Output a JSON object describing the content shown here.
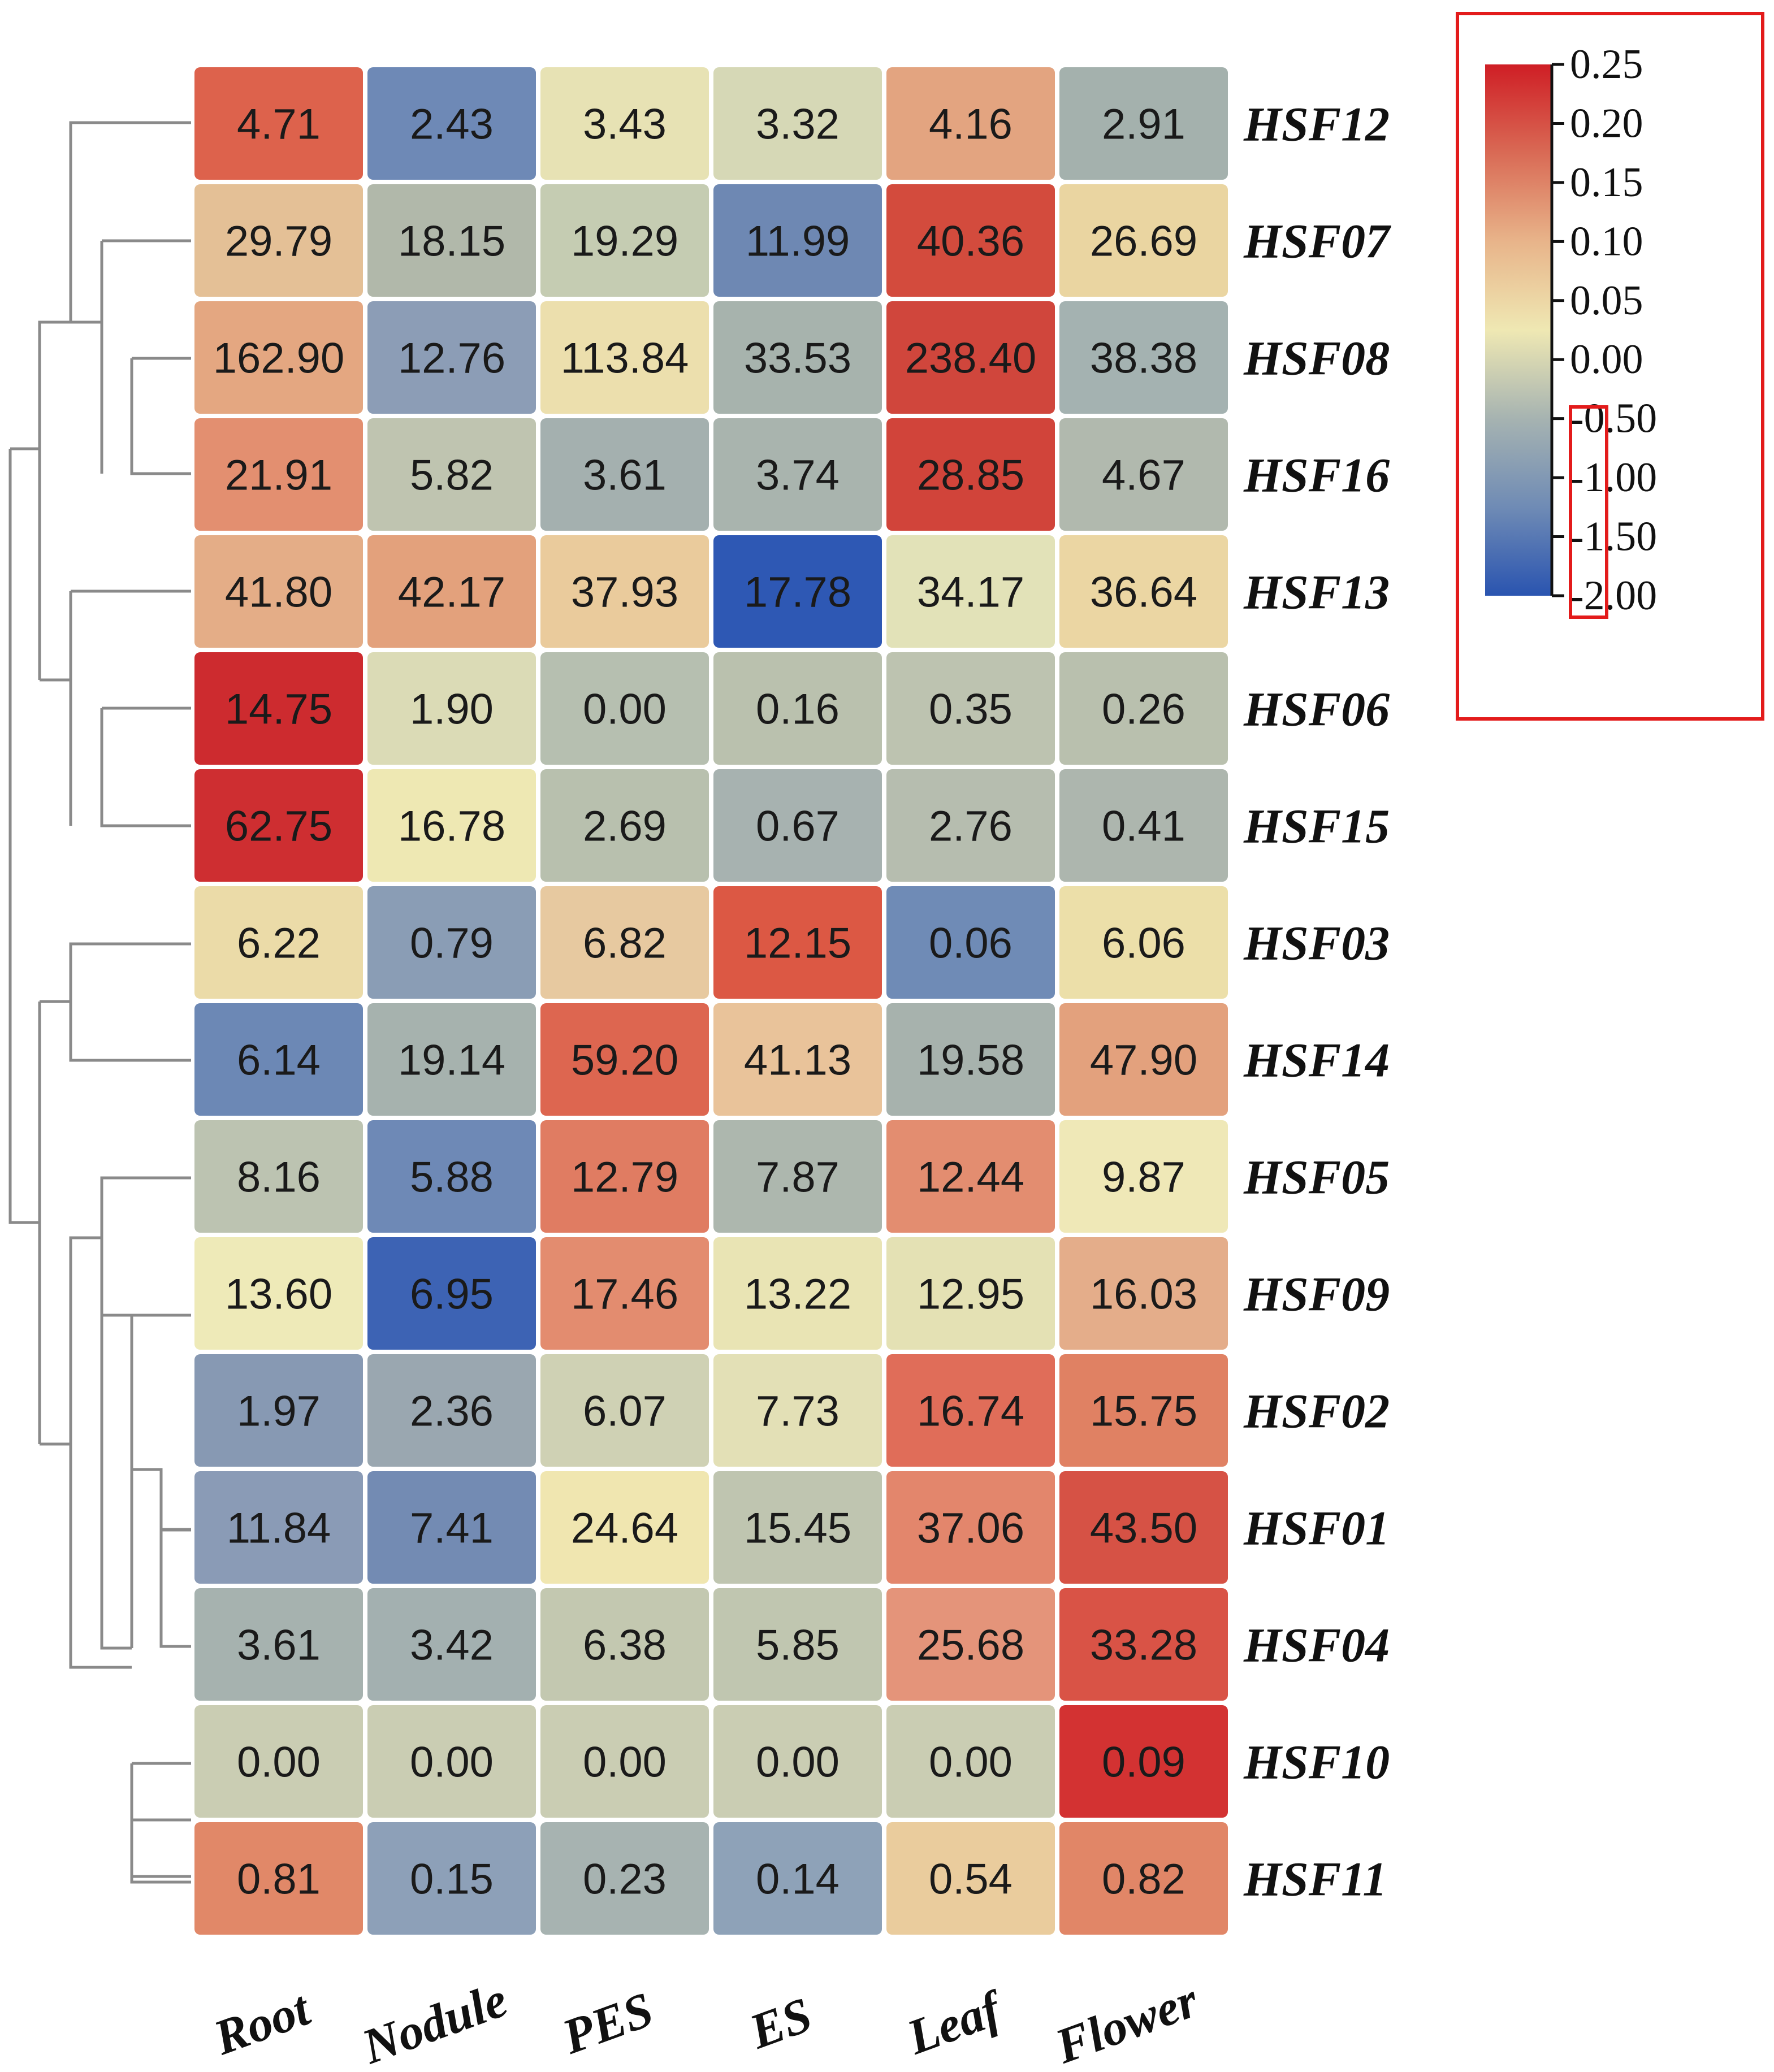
{
  "chart_data": {
    "type": "heatmap",
    "title": "",
    "columns": [
      "Root",
      "Nodule",
      "PES",
      "ES",
      "Leaf",
      "Flower"
    ],
    "rows": [
      "HSF12",
      "HSF07",
      "HSF08",
      "HSF16",
      "HSF13",
      "HSF06",
      "HSF15",
      "HSF03",
      "HSF14",
      "HSF05",
      "HSF09",
      "HSF02",
      "HSF01",
      "HSF04",
      "HSF10",
      "HSF11"
    ],
    "values": [
      [
        "4.71",
        "2.43",
        "3.43",
        "3.32",
        "4.16",
        "2.91"
      ],
      [
        "29.79",
        "18.15",
        "19.29",
        "11.99",
        "40.36",
        "26.69"
      ],
      [
        "162.90",
        "12.76",
        "113.84",
        "33.53",
        "238.40",
        "38.38"
      ],
      [
        "21.91",
        "5.82",
        "3.61",
        "3.74",
        "28.85",
        "4.67"
      ],
      [
        "41.80",
        "42.17",
        "37.93",
        "17.78",
        "34.17",
        "36.64"
      ],
      [
        "14.75",
        "1.90",
        "0.00",
        "0.16",
        "0.35",
        "0.26"
      ],
      [
        "62.75",
        "16.78",
        "2.69",
        "0.67",
        "2.76",
        "0.41"
      ],
      [
        "6.22",
        "0.79",
        "6.82",
        "12.15",
        "0.06",
        "6.06"
      ],
      [
        "6.14",
        "19.14",
        "59.20",
        "41.13",
        "19.58",
        "47.90"
      ],
      [
        "8.16",
        "5.88",
        "12.79",
        "7.87",
        "12.44",
        "9.87"
      ],
      [
        "13.60",
        "6.95",
        "17.46",
        "13.22",
        "12.95",
        "16.03"
      ],
      [
        "1.97",
        "2.36",
        "6.07",
        "7.73",
        "16.74",
        "15.75"
      ],
      [
        "11.84",
        "7.41",
        "24.64",
        "15.45",
        "37.06",
        "43.50"
      ],
      [
        "3.61",
        "3.42",
        "6.38",
        "5.85",
        "25.68",
        "33.28"
      ],
      [
        "0.00",
        "0.00",
        "0.00",
        "0.00",
        "0.00",
        "0.09"
      ],
      [
        "0.81",
        "0.15",
        "0.23",
        "0.14",
        "0.54",
        "0.82"
      ]
    ],
    "colors": [
      [
        "#dd624c",
        "#6e89b6",
        "#e7e2b4",
        "#d6d8b6",
        "#e3a480",
        "#a4b1ad"
      ],
      [
        "#e4c096",
        "#b1b8aa",
        "#c5ccb2",
        "#6e88b3",
        "#d34b3d",
        "#ead5a1"
      ],
      [
        "#e4a781",
        "#8c9db6",
        "#ecdfad",
        "#a7b3ad",
        "#d0463c",
        "#a4b2b1"
      ],
      [
        "#e38f70",
        "#bfc4b0",
        "#a4b0af",
        "#a9b4ae",
        "#d1443a",
        "#b1b9ae"
      ],
      [
        "#e4ad87",
        "#e3a17c",
        "#eacb9c",
        "#2e58b4",
        "#e2e2b8",
        "#ebd6a3"
      ],
      [
        "#cd2b2f",
        "#dbdbb6",
        "#b6bfb0",
        "#bac1ae",
        "#bdc3b0",
        "#b9c0ae"
      ],
      [
        "#ce2e31",
        "#eee8b3",
        "#b8c0ae",
        "#a7b2b0",
        "#b6bdaf",
        "#adb6ae"
      ],
      [
        "#ebdba8",
        "#8a9db5",
        "#e7c9a0",
        "#dc5844",
        "#6f8bb6",
        "#ecdfa9"
      ],
      [
        "#6c88b5",
        "#a6b2ae",
        "#dd6650",
        "#e9c39a",
        "#a7b2ad",
        "#e3a17d"
      ],
      [
        "#bcc3b1",
        "#6e89b6",
        "#e07c62",
        "#adb7ae",
        "#e38d70",
        "#efe8b7"
      ],
      [
        "#eeeab8",
        "#3d63b4",
        "#e38c6f",
        "#e9e4b4",
        "#e4e1b4",
        "#e4ad8a"
      ],
      [
        "#8799b3",
        "#9aa7b0",
        "#cfd1b4",
        "#e3e0b6",
        "#e06d59",
        "#e08163"
      ],
      [
        "#8a9bb6",
        "#738bb3",
        "#f0e6b0",
        "#bfc5b0",
        "#e3866c",
        "#d65245"
      ],
      [
        "#a6b2af",
        "#a3b0b0",
        "#c3c8b0",
        "#c0c6b0",
        "#e4947a",
        "#d95346"
      ],
      [
        "#cacdb3",
        "#cacdb3",
        "#cacdb3",
        "#cacdb3",
        "#cacdb3",
        "#d33232"
      ],
      [
        "#e18868",
        "#8da0b8",
        "#a7b3b1",
        "#8ea2b8",
        "#eacc9d",
        "#e18667"
      ]
    ],
    "legend": {
      "ticks": [
        "0.25",
        "0.20",
        "0.15",
        "0.10",
        "0.05",
        "0.00",
        "-0.50",
        "-1.00",
        "-1.50",
        "-2.00"
      ],
      "gradient": [
        "#cf1e25",
        "#d96a55",
        "#e8b48a",
        "#efe8b3",
        "#a6b3b1",
        "#6f8bb5",
        "#2a54b0"
      ],
      "placement": "top-right"
    },
    "dendrogram": "row clustering tree (left)",
    "highlight_color": "#e31b1b"
  }
}
